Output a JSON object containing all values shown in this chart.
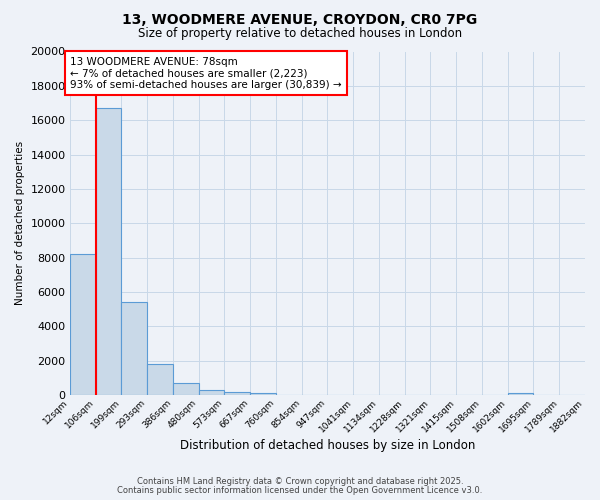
{
  "title": "13, WOODMERE AVENUE, CROYDON, CR0 7PG",
  "subtitle": "Size of property relative to detached houses in London",
  "xlabel": "Distribution of detached houses by size in London",
  "ylabel": "Number of detached properties",
  "bin_labels": [
    "12sqm",
    "106sqm",
    "199sqm",
    "293sqm",
    "386sqm",
    "480sqm",
    "573sqm",
    "667sqm",
    "760sqm",
    "854sqm",
    "947sqm",
    "1041sqm",
    "1134sqm",
    "1228sqm",
    "1321sqm",
    "1415sqm",
    "1508sqm",
    "1602sqm",
    "1695sqm",
    "1789sqm",
    "1882sqm"
  ],
  "bar_heights": [
    8200,
    16700,
    5400,
    1800,
    700,
    280,
    200,
    100,
    0,
    0,
    0,
    0,
    0,
    0,
    0,
    0,
    0,
    100,
    0,
    0
  ],
  "bar_color": "#c9d9e8",
  "bar_edge_color": "#5b9bd5",
  "grid_color": "#c8d8e8",
  "background_color": "#eef2f8",
  "red_line_x": 1,
  "ann_line1": "13 WOODMERE AVENUE: 78sqm",
  "ann_line2": "← 7% of detached houses are smaller (2,223)",
  "ann_line3": "93% of semi-detached houses are larger (30,839) →",
  "ylim": [
    0,
    20000
  ],
  "yticks": [
    0,
    2000,
    4000,
    6000,
    8000,
    10000,
    12000,
    14000,
    16000,
    18000,
    20000
  ],
  "footer_line1": "Contains HM Land Registry data © Crown copyright and database right 2025.",
  "footer_line2": "Contains public sector information licensed under the Open Government Licence v3.0."
}
